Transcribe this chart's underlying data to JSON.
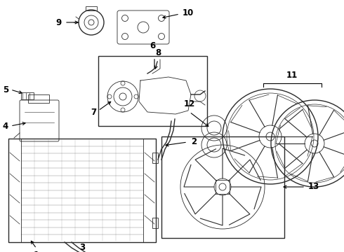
{
  "bg_color": "#ffffff",
  "line_color": "#2a2a2a",
  "label_color": "#000000",
  "label_fontsize": 8.5,
  "label_fontweight": "bold",
  "figw": 4.9,
  "figh": 3.6,
  "dpi": 100
}
